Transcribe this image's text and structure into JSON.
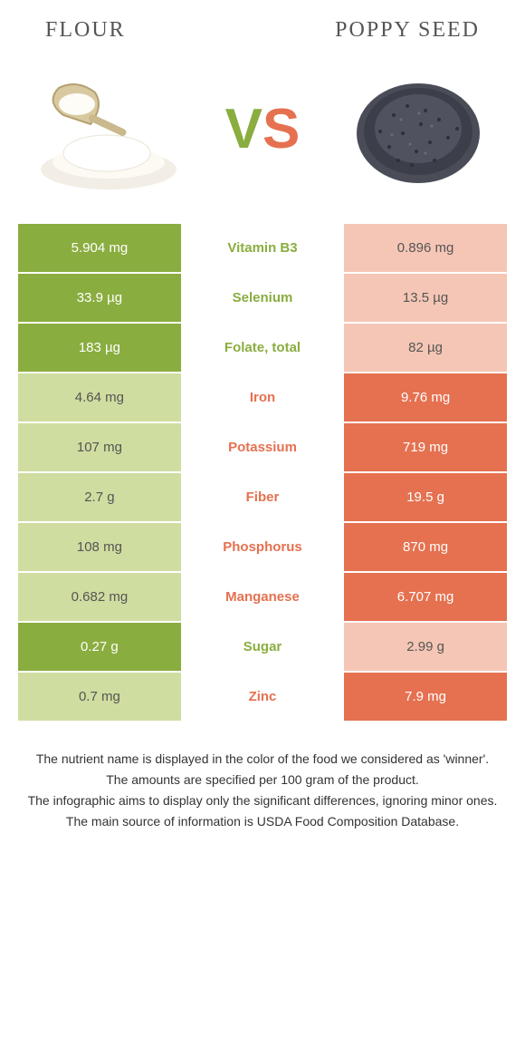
{
  "header": {
    "left_title": "FLOUR",
    "right_title": "POPPY SEED",
    "vs_v": "V",
    "vs_s": "S"
  },
  "colors": {
    "green": "#8aad3f",
    "orange": "#e57150",
    "pale_green": "#cfdda0",
    "pale_orange": "#f5c6b5"
  },
  "rows": [
    {
      "left": "5.904 mg",
      "mid": "Vitamin B3",
      "right": "0.896 mg",
      "winner": "left"
    },
    {
      "left": "33.9 µg",
      "mid": "Selenium",
      "right": "13.5 µg",
      "winner": "left"
    },
    {
      "left": "183 µg",
      "mid": "Folate, total",
      "right": "82 µg",
      "winner": "left"
    },
    {
      "left": "4.64 mg",
      "mid": "Iron",
      "right": "9.76 mg",
      "winner": "right"
    },
    {
      "left": "107 mg",
      "mid": "Potassium",
      "right": "719 mg",
      "winner": "right"
    },
    {
      "left": "2.7 g",
      "mid": "Fiber",
      "right": "19.5 g",
      "winner": "right"
    },
    {
      "left": "108 mg",
      "mid": "Phosphorus",
      "right": "870 mg",
      "winner": "right"
    },
    {
      "left": "0.682 mg",
      "mid": "Manganese",
      "right": "6.707 mg",
      "winner": "right"
    },
    {
      "left": "0.27 g",
      "mid": "Sugar",
      "right": "2.99 g",
      "winner": "left"
    },
    {
      "left": "0.7 mg",
      "mid": "Zinc",
      "right": "7.9 mg",
      "winner": "right"
    }
  ],
  "footer": {
    "line1": "The nutrient name is displayed in the color of the food we considered as 'winner'.",
    "line2": "The amounts are specified per 100 gram of the product.",
    "line3": "The infographic aims to display only the significant differences, ignoring minor ones.",
    "line4": "The main source of information is USDA Food Composition Database."
  }
}
